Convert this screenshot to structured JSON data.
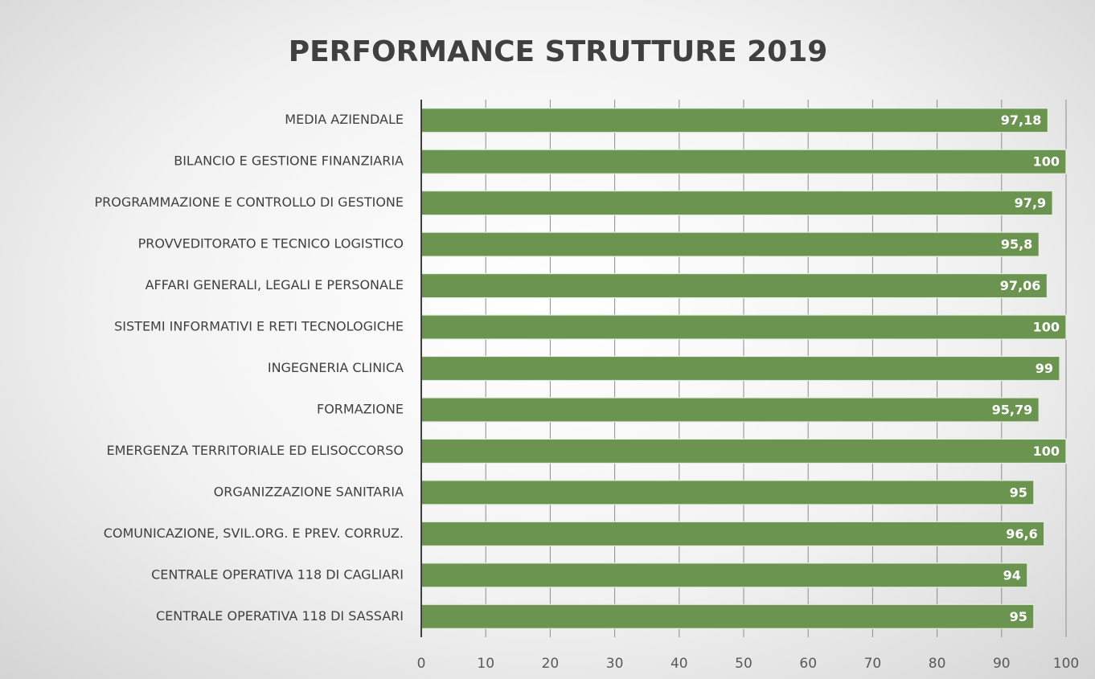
{
  "chart_data": {
    "type": "bar",
    "orientation": "horizontal",
    "title": "PERFORMANCE STRUTTURE 2019",
    "categories": [
      "MEDIA AZIENDALE",
      "BILANCIO E GESTIONE FINANZIARIA",
      "PROGRAMMAZIONE E CONTROLLO DI GESTIONE",
      "PROVVEDITORATO E TECNICO LOGISTICO",
      "AFFARI GENERALI, LEGALI E PERSONALE",
      "SISTEMI INFORMATIVI E RETI TECNOLOGICHE",
      "INGEGNERIA CLINICA",
      "FORMAZIONE",
      "EMERGENZA TERRITORIALE ED ELISOCCORSO",
      "ORGANIZZAZIONE SANITARIA",
      "COMUNICAZIONE, SVIL.ORG. E PREV. CORRUZ.",
      "CENTRALE OPERATIVA 118 DI CAGLIARI",
      "CENTRALE OPERATIVA 118 DI SASSARI"
    ],
    "values": [
      97.18,
      100,
      97.9,
      95.8,
      97.06,
      100,
      99,
      95.79,
      100,
      95,
      96.6,
      94,
      95
    ],
    "value_labels": [
      "97,18",
      "100",
      "97,9",
      "95,8",
      "97,06",
      "100",
      "99",
      "95,79",
      "100",
      "95",
      "96,6",
      "94",
      "95"
    ],
    "color": "#6a9450",
    "xlim": [
      0,
      100
    ],
    "xticks": [
      0,
      10,
      20,
      30,
      40,
      50,
      60,
      70,
      80,
      90,
      100
    ],
    "grid": true
  }
}
